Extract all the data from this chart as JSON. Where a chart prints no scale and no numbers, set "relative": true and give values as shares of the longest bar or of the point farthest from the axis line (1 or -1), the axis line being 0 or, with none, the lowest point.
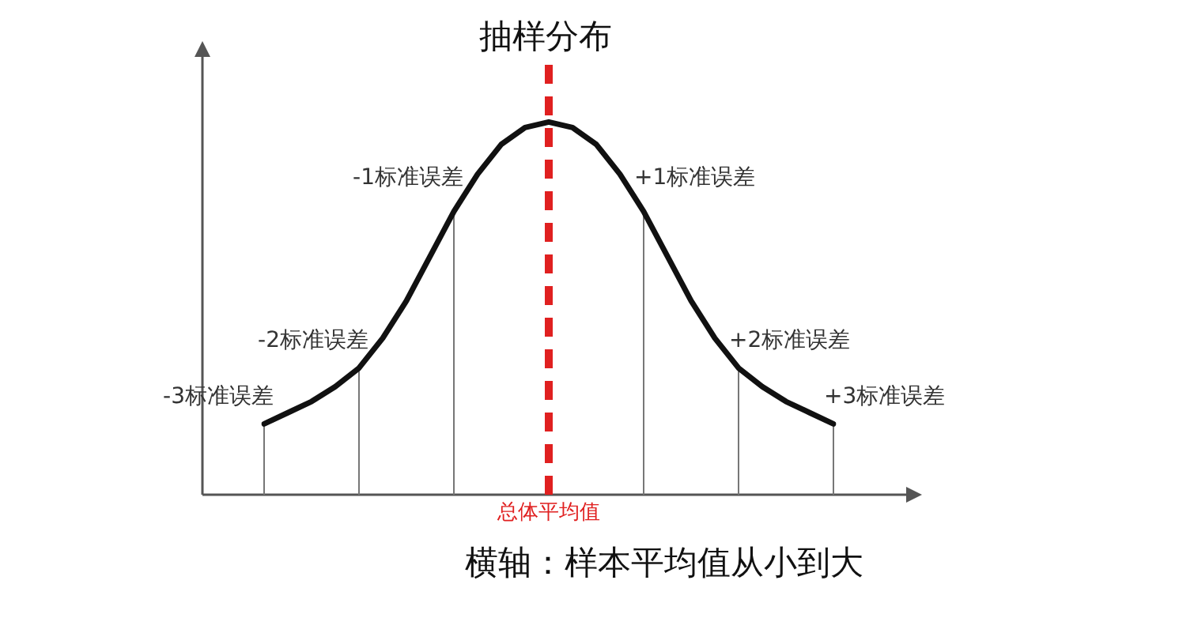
{
  "chart_data": {
    "type": "line",
    "title": "抽样分布",
    "xlabel": "横轴：样本平均值从小到大",
    "relative": true,
    "tick_labels": false,
    "marker": "none",
    "categories": [
      null,
      null,
      null,
      null,
      null,
      null,
      null,
      null,
      null,
      null,
      null,
      null,
      null,
      null,
      null,
      null,
      null,
      null,
      null,
      null,
      null,
      null,
      null,
      null,
      null
    ],
    "series": [
      {
        "color": "#111111",
        "values": [
          0.19,
          0.22,
          0.25,
          0.29,
          0.34,
          0.42,
          0.52,
          0.64,
          0.76,
          0.86,
          0.94,
          0.985,
          1,
          0.985,
          0.94,
          0.86,
          0.76,
          0.64,
          0.52,
          0.42,
          0.34,
          0.29,
          0.25,
          0.22,
          0.19
        ]
      }
    ],
    "annotations": [
      "-3标准误差",
      "-2标准误差",
      "-1标准误差",
      "+1标准误差",
      "+2标准误差",
      "+3标准误差",
      "总体平均值"
    ]
  }
}
